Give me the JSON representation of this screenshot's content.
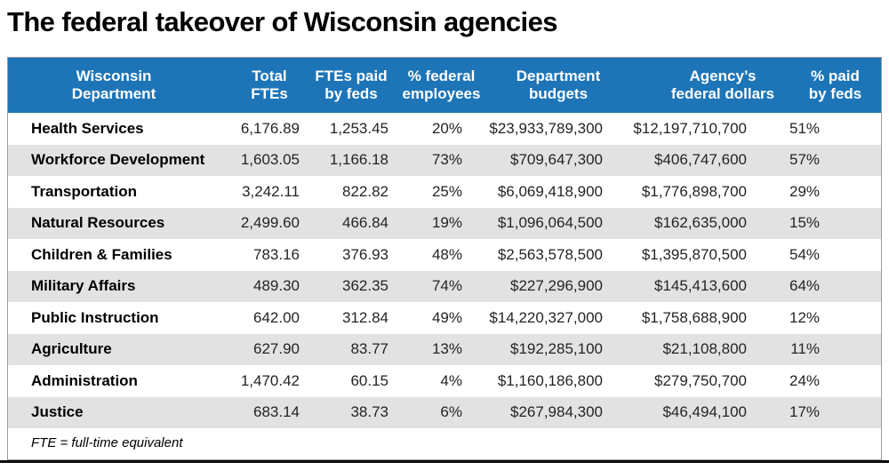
{
  "title": "The federal takeover of Wisconsin agencies",
  "footnote": "FTE = full-time equivalent",
  "colors": {
    "header_bg": "#1d75b8",
    "stripe": "#e2e2e2",
    "frame_border": "#9c9c9c",
    "body_text": "#262324",
    "bottom_rule": "#0a0a0a"
  },
  "table": {
    "columns": [
      {
        "key": "department",
        "line1": "Wisconsin",
        "line2": "Department"
      },
      {
        "key": "total_ftes",
        "line1": "Total",
        "line2": "FTEs"
      },
      {
        "key": "ftes_paid_by_feds",
        "line1": "FTEs paid",
        "line2": "by feds"
      },
      {
        "key": "pct_federal_employees",
        "line1": "% federal",
        "line2": "employees"
      },
      {
        "key": "department_budgets",
        "line1": "Department",
        "line2": "budgets"
      },
      {
        "key": "agencys_federal_dollars",
        "line1": "Agency’s",
        "line2": "federal dollars"
      },
      {
        "key": "pct_paid_by_feds",
        "line1": "% paid",
        "line2": "by feds"
      }
    ],
    "rows": [
      {
        "department": "Health Services",
        "total_ftes": "6,176.89",
        "ftes_paid_by_feds": "1,253.45",
        "pct_federal_employees": "20%",
        "department_budgets": "$23,933,789,300",
        "agencys_federal_dollars": "$12,197,710,700",
        "pct_paid_by_feds": "51%"
      },
      {
        "department": "Workforce Development",
        "total_ftes": "1,603.05",
        "ftes_paid_by_feds": "1,166.18",
        "pct_federal_employees": "73%",
        "department_budgets": "$709,647,300",
        "agencys_federal_dollars": "$406,747,600",
        "pct_paid_by_feds": "57%"
      },
      {
        "department": "Transportation",
        "total_ftes": "3,242.11",
        "ftes_paid_by_feds": "822.82",
        "pct_federal_employees": "25%",
        "department_budgets": "$6,069,418,900",
        "agencys_federal_dollars": "$1,776,898,700",
        "pct_paid_by_feds": "29%"
      },
      {
        "department": "Natural Resources",
        "total_ftes": "2,499.60",
        "ftes_paid_by_feds": "466.84",
        "pct_federal_employees": "19%",
        "department_budgets": "$1,096,064,500",
        "agencys_federal_dollars": "$162,635,000",
        "pct_paid_by_feds": "15%"
      },
      {
        "department": "Children & Families",
        "total_ftes": "783.16",
        "ftes_paid_by_feds": "376.93",
        "pct_federal_employees": "48%",
        "department_budgets": "$2,563,578,500",
        "agencys_federal_dollars": "$1,395,870,500",
        "pct_paid_by_feds": "54%"
      },
      {
        "department": "Military Affairs",
        "total_ftes": "489.30",
        "ftes_paid_by_feds": "362.35",
        "pct_federal_employees": "74%",
        "department_budgets": "$227,296,900",
        "agencys_federal_dollars": "$145,413,600",
        "pct_paid_by_feds": "64%"
      },
      {
        "department": "Public Instruction",
        "total_ftes": "642.00",
        "ftes_paid_by_feds": "312.84",
        "pct_federal_employees": "49%",
        "department_budgets": "$14,220,327,000",
        "agencys_federal_dollars": "$1,758,688,900",
        "pct_paid_by_feds": "12%"
      },
      {
        "department": "Agriculture",
        "total_ftes": "627.90",
        "ftes_paid_by_feds": "83.77",
        "pct_federal_employees": "13%",
        "department_budgets": "$192,285,100",
        "agencys_federal_dollars": "$21,108,800",
        "pct_paid_by_feds": "11%"
      },
      {
        "department": "Administration",
        "total_ftes": "1,470.42",
        "ftes_paid_by_feds": "60.15",
        "pct_federal_employees": "4%",
        "department_budgets": "$1,160,186,800",
        "agencys_federal_dollars": "$279,750,700",
        "pct_paid_by_feds": "24%"
      },
      {
        "department": "Justice",
        "total_ftes": "683.14",
        "ftes_paid_by_feds": "38.73",
        "pct_federal_employees": "6%",
        "department_budgets": "$267,984,300",
        "agencys_federal_dollars": "$46,494,100",
        "pct_paid_by_feds": "17%"
      }
    ]
  },
  "chart_data": {
    "type": "table",
    "title": "The federal takeover of Wisconsin agencies",
    "columns": [
      "Wisconsin Department",
      "Total FTEs",
      "FTEs paid by feds",
      "% federal employees",
      "Department budgets",
      "Agency’s federal dollars",
      "% paid by feds"
    ],
    "rows": [
      [
        "Health Services",
        6176.89,
        1253.45,
        "20%",
        23933789300,
        12197710700,
        "51%"
      ],
      [
        "Workforce Development",
        1603.05,
        1166.18,
        "73%",
        709647300,
        406747600,
        "57%"
      ],
      [
        "Transportation",
        3242.11,
        822.82,
        "25%",
        6069418900,
        1776898700,
        "29%"
      ],
      [
        "Natural Resources",
        2499.6,
        466.84,
        "19%",
        1096064500,
        162635000,
        "15%"
      ],
      [
        "Children & Families",
        783.16,
        376.93,
        "48%",
        2563578500,
        1395870500,
        "54%"
      ],
      [
        "Military Affairs",
        489.3,
        362.35,
        "74%",
        227296900,
        145413600,
        "64%"
      ],
      [
        "Public Instruction",
        642.0,
        312.84,
        "49%",
        14220327000,
        1758688900,
        "12%"
      ],
      [
        "Agriculture",
        627.9,
        83.77,
        "13%",
        192285100,
        21108800,
        "11%"
      ],
      [
        "Administration",
        1470.42,
        60.15,
        "4%",
        1160186800,
        279750700,
        "24%"
      ],
      [
        "Justice",
        683.14,
        38.73,
        "6%",
        267984300,
        46494100,
        "17%"
      ]
    ],
    "footnote": "FTE = full-time equivalent",
    "layout": {
      "header_bg": "#1d75b8",
      "zebra_stripes": true,
      "stripe_color": "#e2e2e2"
    }
  }
}
